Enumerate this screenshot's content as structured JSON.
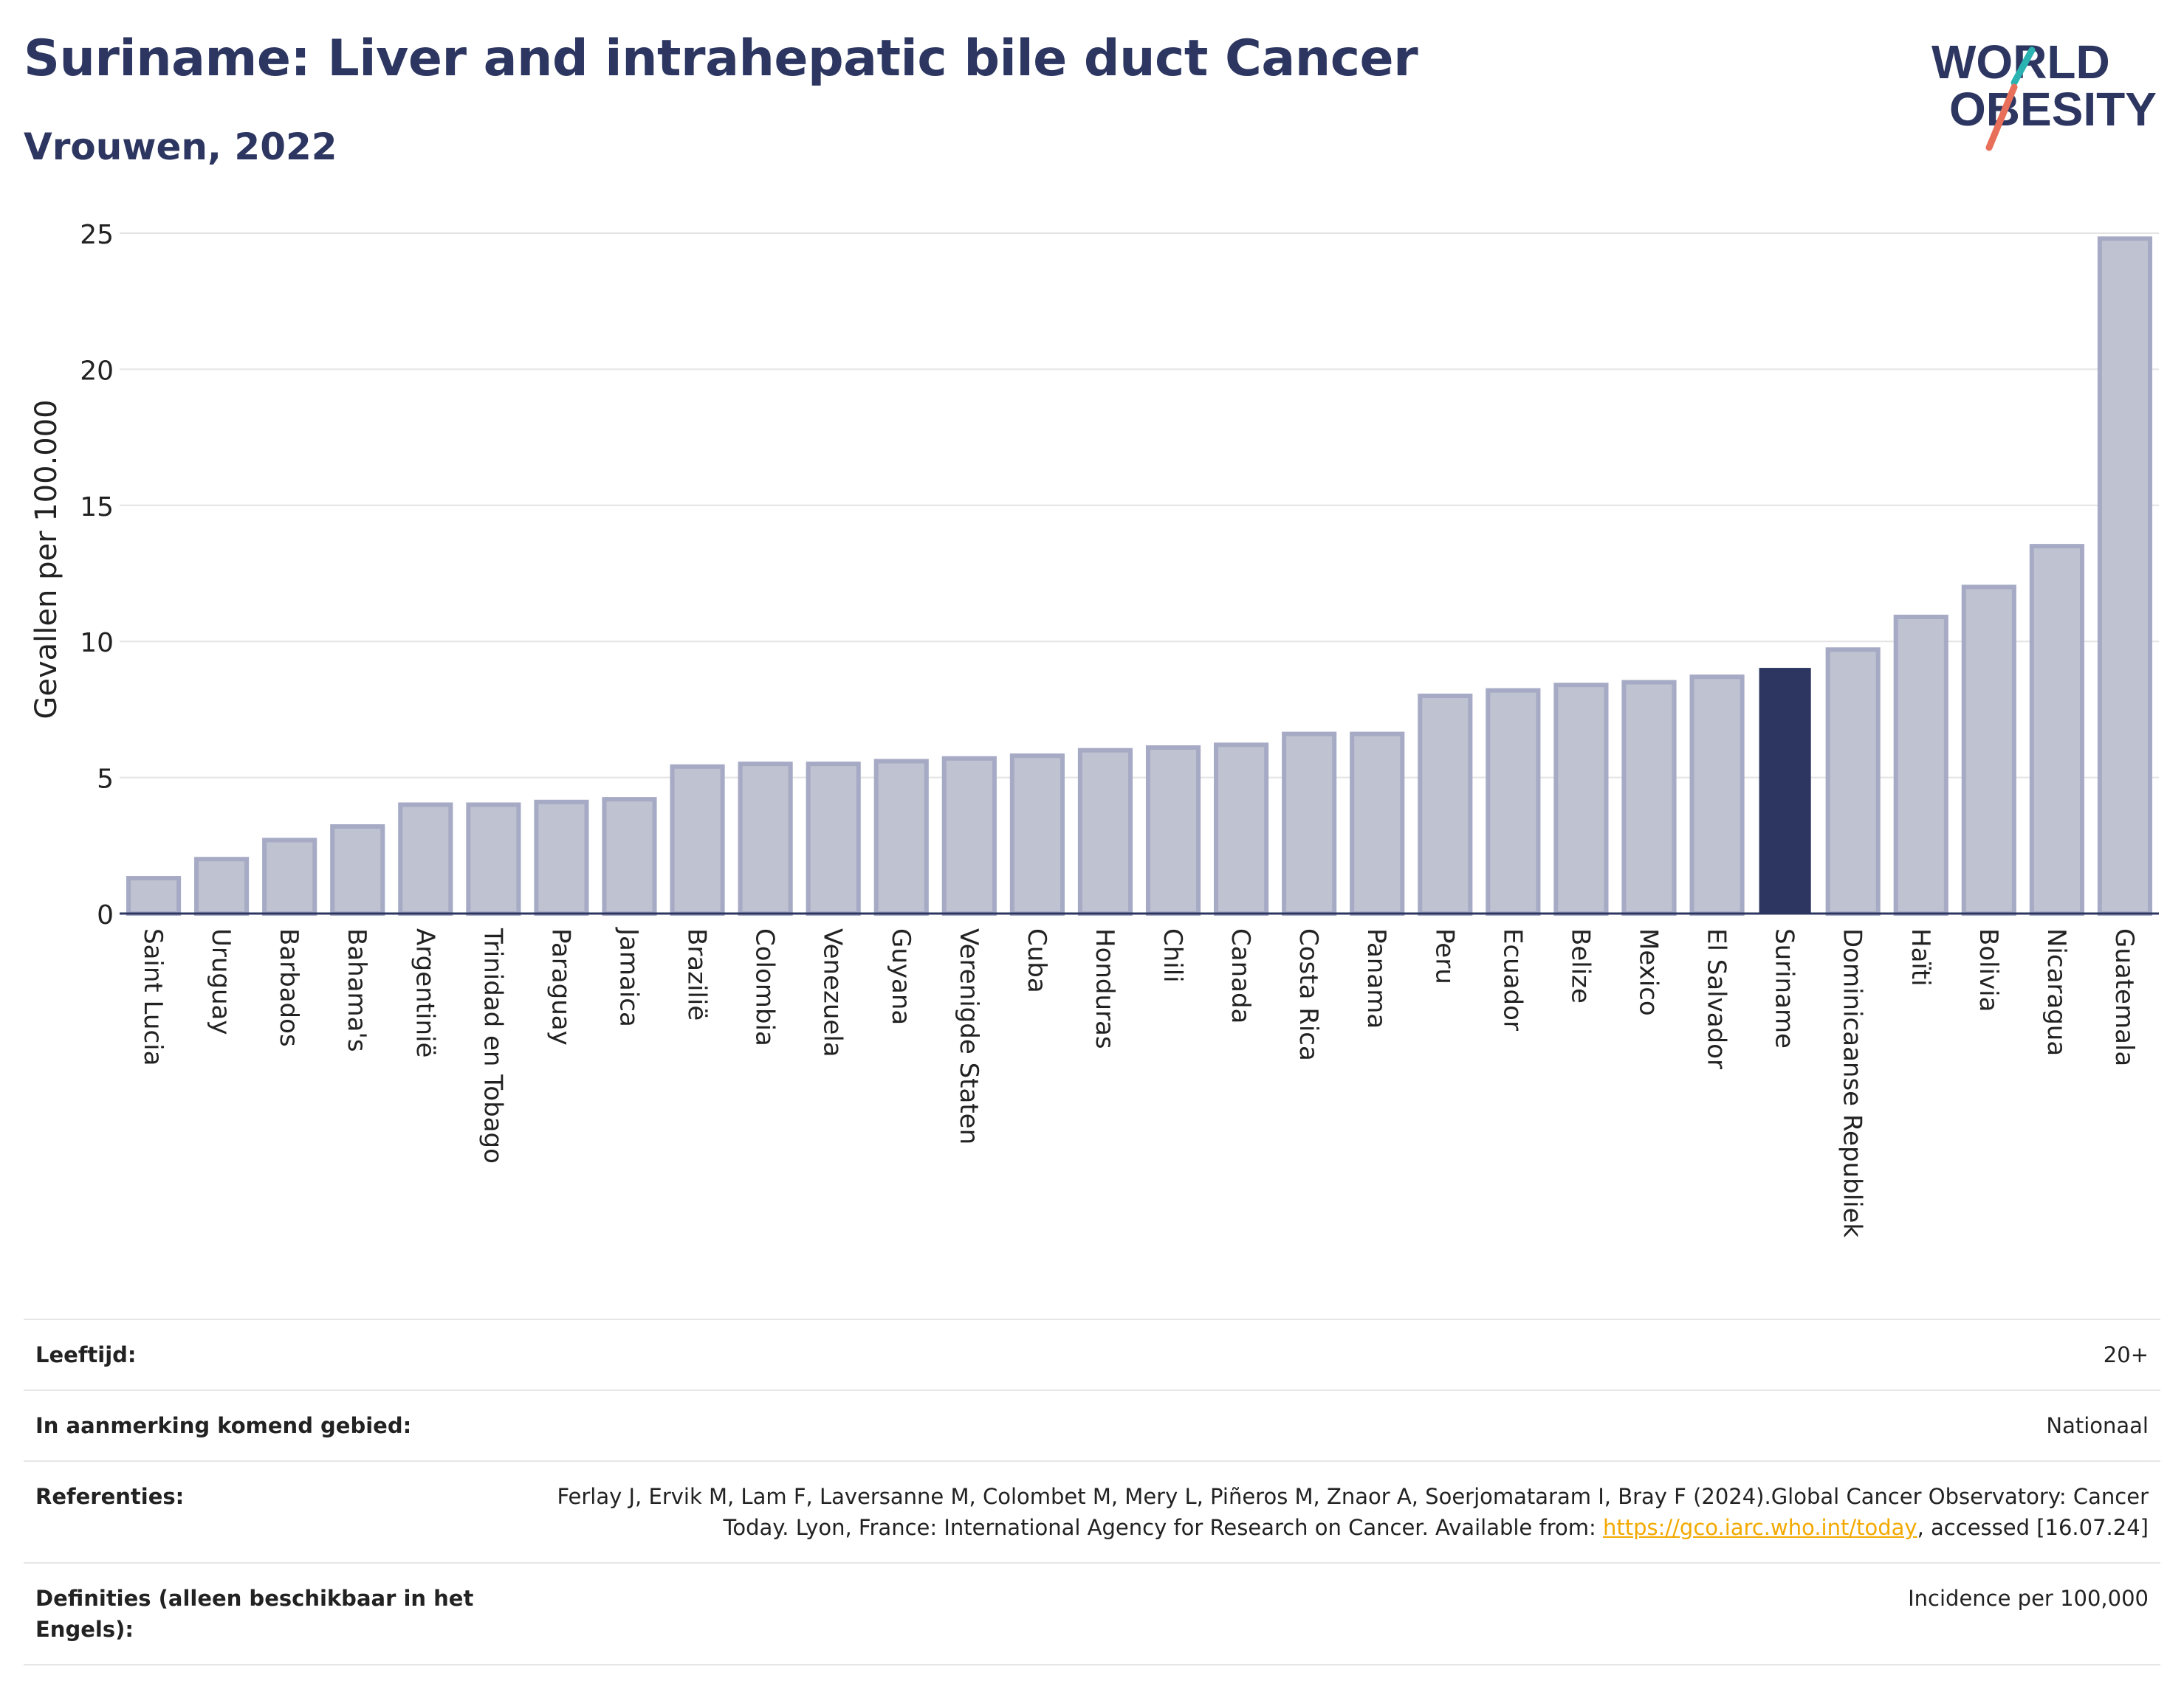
{
  "header": {
    "title": "Suriname: Liver and intrahepatic bile duct Cancer",
    "subtitle": "Vrouwen, 2022"
  },
  "logo": {
    "line1": "WORLD",
    "line2": "OBESITY",
    "accent_colors": [
      "#2bb3b1",
      "#e8705a"
    ]
  },
  "chart_data": {
    "type": "bar",
    "title": "Suriname: Liver and intrahepatic bile duct Cancer",
    "subtitle": "Vrouwen, 2022",
    "ylabel": "Gevallen per 100.000",
    "xlabel": "",
    "ylim": [
      0,
      25
    ],
    "yticks": [
      0,
      5,
      10,
      15,
      20,
      25
    ],
    "grid": true,
    "highlight": "Suriname",
    "colors": {
      "bar": "#bfc2d0",
      "bar_border": "#a6aac4",
      "highlight": "#2c3660"
    },
    "categories": [
      "Saint Lucia",
      "Uruguay",
      "Barbados",
      "Bahama's",
      "Argentinië",
      "Trinidad en Tobago",
      "Paraguay",
      "Jamaica",
      "Brazilië",
      "Colombia",
      "Venezuela",
      "Guyana",
      "Verenigde Staten",
      "Cuba",
      "Honduras",
      "Chili",
      "Canada",
      "Costa Rica",
      "Panama",
      "Peru",
      "Ecuador",
      "Belize",
      "Mexico",
      "El Salvador",
      "Suriname",
      "Dominicaanse Republiek",
      "Haïti",
      "Bolivia",
      "Nicaragua",
      "Guatemala"
    ],
    "values": [
      1.3,
      2.0,
      2.7,
      3.2,
      4.0,
      4.0,
      4.1,
      4.2,
      5.4,
      5.5,
      5.5,
      5.6,
      5.7,
      5.8,
      6.0,
      6.1,
      6.2,
      6.6,
      6.6,
      8.0,
      8.2,
      8.4,
      8.5,
      8.7,
      9.0,
      9.7,
      10.9,
      12.0,
      13.5,
      24.8
    ]
  },
  "meta": [
    {
      "label": "Leeftijd:",
      "value": "20+"
    },
    {
      "label": "In aanmerking komend gebied:",
      "value": "Nationaal"
    },
    {
      "label": "Referenties:",
      "value_before": "Ferlay J, Ervik M, Lam F, Laversanne M, Colombet M, Mery L, Piñeros M, Znaor A, Soerjomataram I, Bray F (2024).Global Cancer Observatory: Cancer Today. Lyon, France: International Agency for Research on Cancer. Available from: ",
      "link": "https://gco.iarc.who.int/today",
      "value_after": ", accessed [16.07.24]"
    },
    {
      "label": "Definities (alleen beschikbaar in het Engels):",
      "value": "Incidence per 100,000"
    }
  ]
}
